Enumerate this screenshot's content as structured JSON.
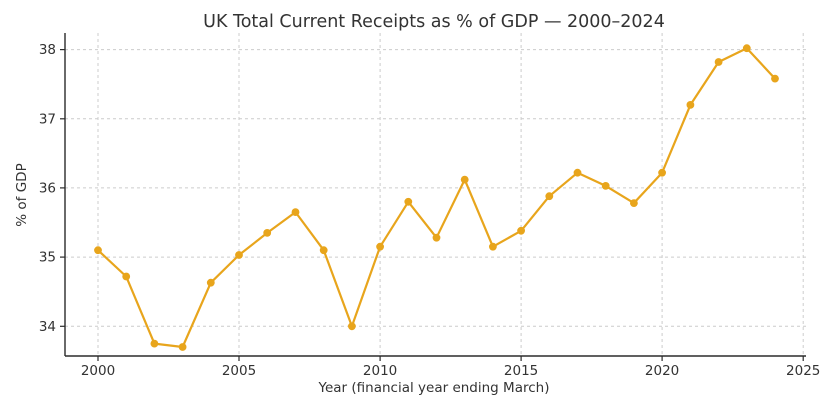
{
  "chart_data": {
    "type": "line",
    "title": "UK Total Current Receipts as % of GDP — 2000–2024",
    "xlabel": "Year (financial year ending March)",
    "ylabel": "% of GDP",
    "x": [
      2000,
      2001,
      2002,
      2003,
      2004,
      2005,
      2006,
      2007,
      2008,
      2009,
      2010,
      2011,
      2012,
      2013,
      2014,
      2015,
      2016,
      2017,
      2018,
      2019,
      2020,
      2021,
      2022,
      2023,
      2024
    ],
    "series": [
      {
        "name": "Total current receipts (% of GDP)",
        "values": [
          35.1,
          34.72,
          33.75,
          33.7,
          34.63,
          35.03,
          35.35,
          35.65,
          35.1,
          34.0,
          35.15,
          35.8,
          35.28,
          36.12,
          35.15,
          35.38,
          35.88,
          36.22,
          36.03,
          35.78,
          36.22,
          37.2,
          37.82,
          38.02,
          37.58
        ]
      }
    ],
    "xticks": [
      2000,
      2005,
      2010,
      2015,
      2020,
      2025
    ],
    "yticks": [
      34,
      35,
      36,
      37,
      38
    ],
    "xlim": [
      1998.83,
      2025.1
    ],
    "ylim": [
      33.57,
      38.24
    ],
    "grid": true,
    "legend": "none",
    "marker": "circle",
    "colors": {
      "line": "#E8A51C",
      "marker": "#E8A51C",
      "text": "#333333",
      "grid": "#cccccc",
      "spine": "#2b2b2b",
      "background": "#ffffff"
    }
  }
}
